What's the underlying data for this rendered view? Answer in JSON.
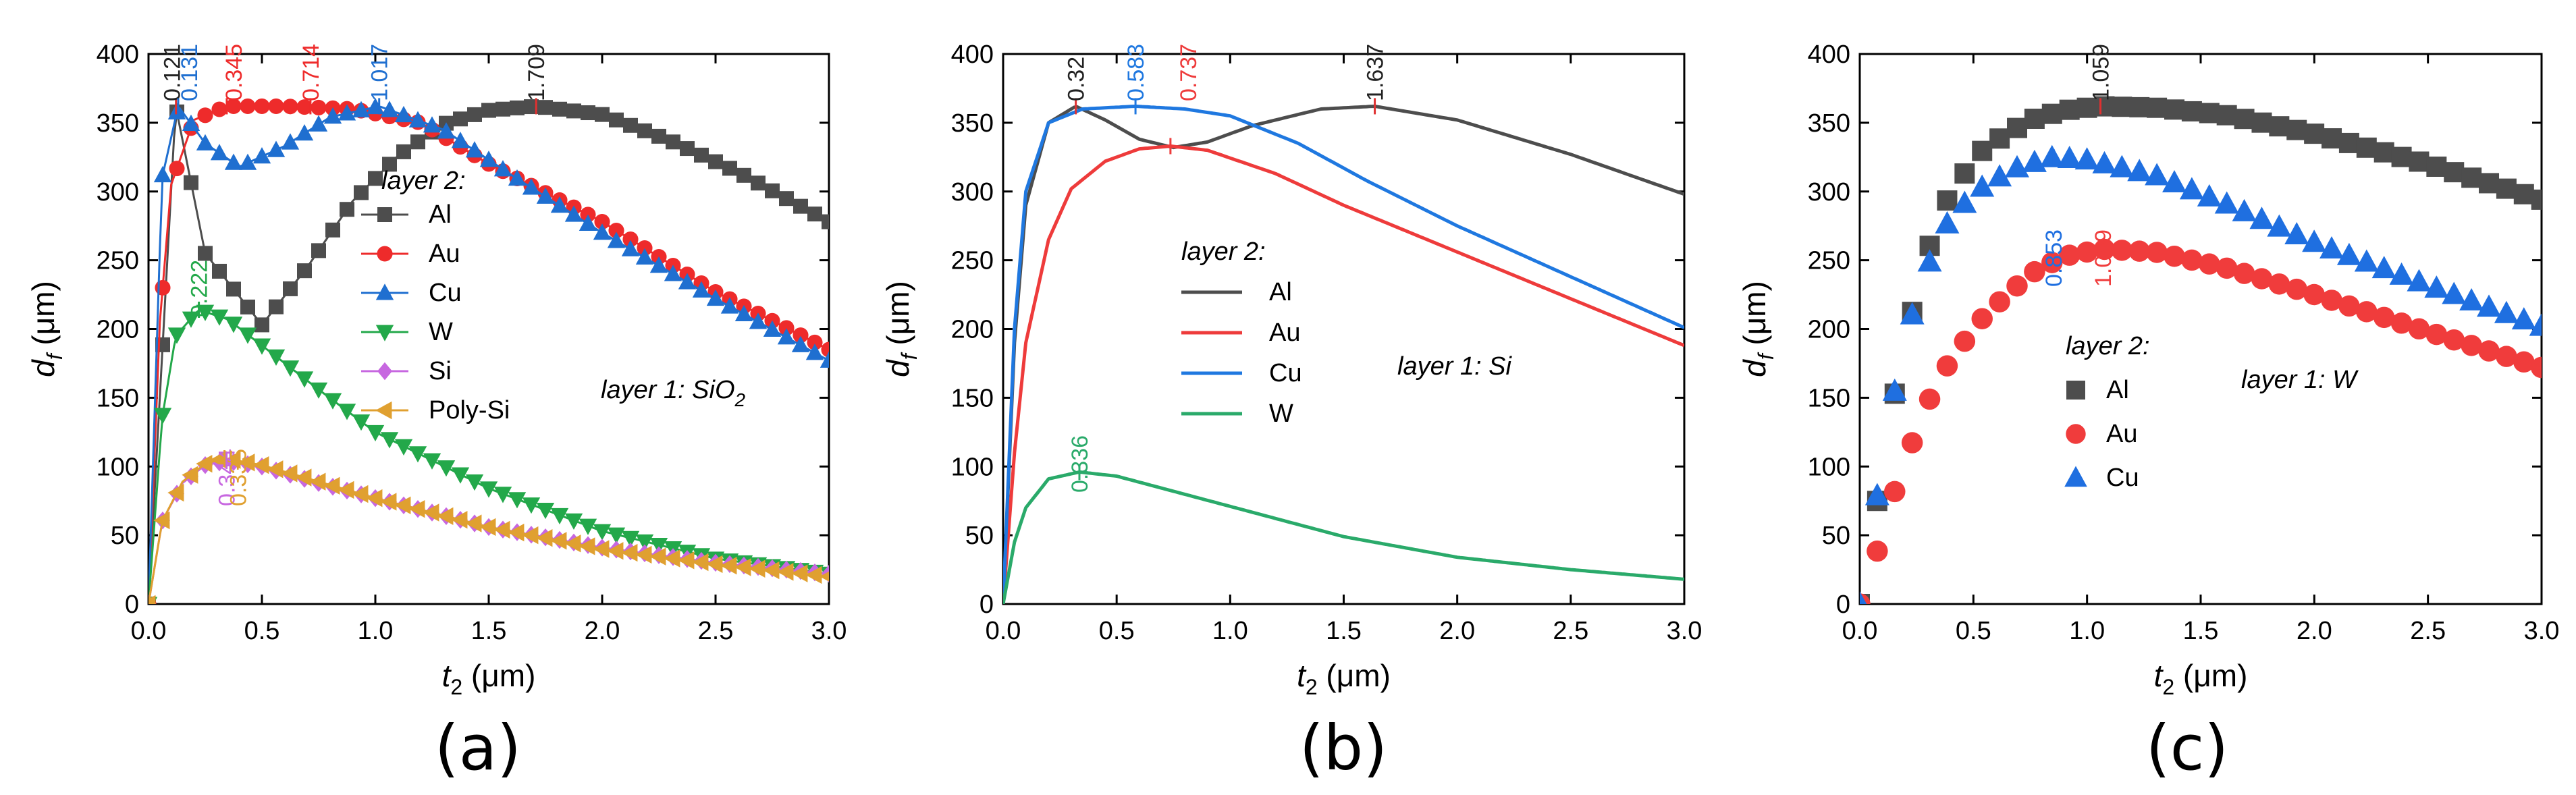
{
  "chart_data": [
    {
      "type": "line",
      "panel_label": "(a)",
      "xlabel": "t2 (μm)",
      "ylabel": "df (μm)",
      "xlim": [
        0,
        3.0
      ],
      "ylim": [
        0,
        400
      ],
      "xticks": [
        0,
        0.5,
        1.0,
        1.5,
        2.0,
        2.5,
        3.0
      ],
      "xtick_labels": [
        "0.0",
        "0.5",
        "1.0",
        "1.5",
        "2.0",
        "2.5",
        "3.0"
      ],
      "yticks": [
        0,
        50,
        100,
        150,
        200,
        250,
        300,
        350,
        400
      ],
      "ytick_labels": [
        "0",
        "50",
        "100",
        "150",
        "200",
        "250",
        "300",
        "350",
        "400"
      ],
      "legend_title": "layer 2:",
      "annotation": "layer 1: SiO2",
      "x_step": 0.0625,
      "series": [
        {
          "name": "Al",
          "color": "#4d4d4d",
          "marker": "square",
          "points": [
            [
              0,
              0
            ],
            [
              0.12,
              362
            ],
            [
              0.25,
              255
            ],
            [
              0.5,
              203
            ],
            [
              0.7,
              245
            ],
            [
              0.9,
              293
            ],
            [
              1.1,
              326
            ],
            [
              1.3,
              349
            ],
            [
              1.5,
              359
            ],
            [
              1.709,
              362
            ],
            [
              2.0,
              356
            ],
            [
              2.3,
              337
            ],
            [
              2.6,
              314
            ],
            [
              3.0,
              278
            ]
          ],
          "peaks": [
            {
              "x": 0.121,
              "y": 362,
              "label": "0.121"
            },
            {
              "x": 1.709,
              "y": 362,
              "label": "1.709"
            }
          ]
        },
        {
          "name": "Au",
          "color": "#ee2b2b",
          "marker": "circle",
          "points": [
            [
              0,
              0
            ],
            [
              0.05,
              205
            ],
            [
              0.1,
              305
            ],
            [
              0.2,
              352
            ],
            [
              0.345,
              362
            ],
            [
              0.6,
              362
            ],
            [
              0.9,
              360
            ],
            [
              1.2,
              350
            ],
            [
              1.5,
              320
            ],
            [
              2.0,
              278
            ],
            [
              2.5,
              227
            ],
            [
              3.0,
              185
            ]
          ],
          "peaks": [
            {
              "x": 0.345,
              "y": 362,
              "label": "0.345"
            },
            {
              "x": 0.714,
              "y": 362,
              "label": "0.714"
            }
          ]
        },
        {
          "name": "Cu",
          "color": "#1f6fd0",
          "marker": "triangle",
          "points": [
            [
              0,
              0
            ],
            [
              0.06,
              310
            ],
            [
              0.131,
              362
            ],
            [
              0.25,
              335
            ],
            [
              0.4,
              318
            ],
            [
              0.6,
              333
            ],
            [
              0.8,
              354
            ],
            [
              1.017,
              362
            ],
            [
              1.3,
              345
            ],
            [
              1.6,
              312
            ],
            [
              2.0,
              270
            ],
            [
              2.5,
              222
            ],
            [
              3.0,
              177
            ]
          ],
          "peaks": [
            {
              "x": 0.131,
              "y": 362,
              "label": "0.131"
            },
            {
              "x": 1.017,
              "y": 362,
              "label": "1.017"
            }
          ]
        },
        {
          "name": "W",
          "color": "#23a84a",
          "marker": "triangle-down",
          "points": [
            [
              0,
              0
            ],
            [
              0.06,
              135
            ],
            [
              0.12,
              195
            ],
            [
              0.222,
              214
            ],
            [
              0.35,
              207
            ],
            [
              0.5,
              188
            ],
            [
              0.75,
              156
            ],
            [
              1.0,
              125
            ],
            [
              1.5,
              84
            ],
            [
              2.0,
              53
            ],
            [
              2.5,
              33
            ],
            [
              3.0,
              22
            ]
          ],
          "peaks": [
            {
              "x": 0.222,
              "y": 214,
              "label": "0.222"
            }
          ]
        },
        {
          "name": "Si",
          "color": "#c767e0",
          "marker": "diamond",
          "points": [
            [
              0,
              0
            ],
            [
              0.06,
              60
            ],
            [
              0.15,
              88
            ],
            [
              0.25,
              101
            ],
            [
              0.344,
              104
            ],
            [
              0.5,
              100
            ],
            [
              0.75,
              88
            ],
            [
              1.0,
              77
            ],
            [
              1.5,
              56
            ],
            [
              2.0,
              41
            ],
            [
              2.5,
              30
            ],
            [
              3.0,
              22
            ]
          ],
          "peaks": [
            {
              "x": 0.344,
              "y": 104,
              "label": "0.344"
            }
          ]
        },
        {
          "name": "Poly-Si",
          "color": "#e0a030",
          "marker": "triangle-left",
          "points": [
            [
              0,
              0
            ],
            [
              0.06,
              60
            ],
            [
              0.15,
              89
            ],
            [
              0.25,
              102
            ],
            [
              0.335,
              106
            ],
            [
              0.5,
              101
            ],
            [
              0.75,
              89
            ],
            [
              1.0,
              77
            ],
            [
              1.5,
              56
            ],
            [
              2.0,
              40
            ],
            [
              2.5,
              29
            ],
            [
              3.0,
              20
            ]
          ],
          "peaks": [
            {
              "x": 0.335,
              "y": 106,
              "label": "0.335"
            }
          ]
        }
      ]
    },
    {
      "type": "line",
      "panel_label": "(b)",
      "xlabel": "t2 (μm)",
      "ylabel": "df (μm)",
      "xlim": [
        0,
        3.0
      ],
      "ylim": [
        0,
        400
      ],
      "xticks": [
        0,
        0.5,
        1.0,
        1.5,
        2.0,
        2.5,
        3.0
      ],
      "xtick_labels": [
        "0.0",
        "0.5",
        "1.0",
        "1.5",
        "2.0",
        "2.5",
        "3.0"
      ],
      "yticks": [
        0,
        50,
        100,
        150,
        200,
        250,
        300,
        350,
        400
      ],
      "ytick_labels": [
        "0",
        "50",
        "100",
        "150",
        "200",
        "250",
        "300",
        "350",
        "400"
      ],
      "legend_title": "layer 2:",
      "annotation": "layer 1: Si",
      "series": [
        {
          "name": "Al",
          "color": "#4d4d4d",
          "points": [
            [
              0,
              0
            ],
            [
              0.05,
              190
            ],
            [
              0.1,
              290
            ],
            [
              0.2,
              350
            ],
            [
              0.32,
              362
            ],
            [
              0.45,
              352
            ],
            [
              0.6,
              338
            ],
            [
              0.75,
              332
            ],
            [
              0.9,
              336
            ],
            [
              1.1,
              348
            ],
            [
              1.4,
              360
            ],
            [
              1.637,
              362
            ],
            [
              2.0,
              352
            ],
            [
              2.5,
              327
            ],
            [
              3.0,
              298
            ]
          ],
          "peaks": [
            {
              "x": 0.32,
              "y": 362,
              "label": "0.32"
            },
            {
              "x": 1.637,
              "y": 362,
              "label": "1.637"
            }
          ]
        },
        {
          "name": "Au",
          "color": "#ee3b3b",
          "points": [
            [
              0,
              0
            ],
            [
              0.05,
              110
            ],
            [
              0.1,
              190
            ],
            [
              0.2,
              265
            ],
            [
              0.3,
              302
            ],
            [
              0.45,
              322
            ],
            [
              0.6,
              331
            ],
            [
              0.737,
              333
            ],
            [
              0.9,
              330
            ],
            [
              1.2,
              313
            ],
            [
              1.5,
              290
            ],
            [
              2.0,
              256
            ],
            [
              2.5,
              222
            ],
            [
              3.0,
              188
            ]
          ],
          "peaks": [
            {
              "x": 0.737,
              "y": 333,
              "label": "0.737"
            }
          ]
        },
        {
          "name": "Cu",
          "color": "#1f78e0",
          "points": [
            [
              0,
              0
            ],
            [
              0.05,
              200
            ],
            [
              0.1,
              300
            ],
            [
              0.2,
              350
            ],
            [
              0.35,
              360
            ],
            [
              0.583,
              362
            ],
            [
              0.8,
              360
            ],
            [
              1.0,
              355
            ],
            [
              1.3,
              335
            ],
            [
              1.6,
              308
            ],
            [
              2.0,
              275
            ],
            [
              2.5,
              238
            ],
            [
              3.0,
              201
            ]
          ],
          "peaks": [
            {
              "x": 0.583,
              "y": 362,
              "label": "0.583"
            }
          ]
        },
        {
          "name": "W",
          "color": "#2aaa6a",
          "points": [
            [
              0,
              0
            ],
            [
              0.05,
              45
            ],
            [
              0.1,
              70
            ],
            [
              0.2,
              91
            ],
            [
              0.336,
              96
            ],
            [
              0.5,
              93
            ],
            [
              0.75,
              82
            ],
            [
              1.0,
              71
            ],
            [
              1.5,
              49
            ],
            [
              2.0,
              34
            ],
            [
              2.5,
              25
            ],
            [
              3.0,
              18
            ]
          ],
          "peaks": [
            {
              "x": 0.336,
              "y": 96,
              "label": "0.336"
            }
          ]
        }
      ]
    },
    {
      "type": "scatter",
      "panel_label": "(c)",
      "xlabel": "t2 (μm)",
      "ylabel": "df (μm)",
      "xlim": [
        0,
        3.0
      ],
      "ylim": [
        0,
        400
      ],
      "xticks": [
        0,
        0.5,
        1.0,
        1.5,
        2.0,
        2.5,
        3.0
      ],
      "xtick_labels": [
        "0.0",
        "0.5",
        "1.0",
        "1.5",
        "2.0",
        "2.5",
        "3.0"
      ],
      "yticks": [
        0,
        50,
        100,
        150,
        200,
        250,
        300,
        350,
        400
      ],
      "ytick_labels": [
        "0",
        "50",
        "100",
        "150",
        "200",
        "250",
        "300",
        "350",
        "400"
      ],
      "legend_title": "layer 2:",
      "annotation": "layer 1: W",
      "x_step": 0.0769,
      "series": [
        {
          "name": "Al",
          "color": "#4d4d4d",
          "marker": "square",
          "points": [
            [
              0,
              0
            ],
            [
              0.08,
              78
            ],
            [
              0.15,
              150
            ],
            [
              0.23,
              212
            ],
            [
              0.31,
              262
            ],
            [
              0.4,
              300
            ],
            [
              0.55,
              332
            ],
            [
              0.75,
              352
            ],
            [
              0.9,
              359
            ],
            [
              1.059,
              362
            ],
            [
              1.3,
              361
            ],
            [
              1.6,
              356
            ],
            [
              2.0,
              342
            ],
            [
              2.5,
              320
            ],
            [
              3.0,
              294
            ]
          ],
          "peaks": [
            {
              "x": 1.059,
              "y": 362,
              "label": "1.059"
            }
          ]
        },
        {
          "name": "Au",
          "color": "#f03c3c",
          "marker": "circle",
          "points": [
            [
              0,
              0
            ],
            [
              0.08,
              40
            ],
            [
              0.15,
              80
            ],
            [
              0.23,
              117
            ],
            [
              0.31,
              150
            ],
            [
              0.4,
              178
            ],
            [
              0.55,
              210
            ],
            [
              0.75,
              240
            ],
            [
              0.9,
              253
            ],
            [
              1.069,
              258
            ],
            [
              1.3,
              256
            ],
            [
              1.6,
              245
            ],
            [
              2.0,
              225
            ],
            [
              2.5,
              198
            ],
            [
              3.0,
              172
            ]
          ],
          "peaks": [
            {
              "x": 1.069,
              "y": 258,
              "label": "1.069"
            }
          ]
        },
        {
          "name": "Cu",
          "color": "#1f6fe0",
          "marker": "triangle",
          "points": [
            [
              0,
              0
            ],
            [
              0.08,
              82
            ],
            [
              0.15,
              152
            ],
            [
              0.23,
              210
            ],
            [
              0.31,
              250
            ],
            [
              0.4,
              282
            ],
            [
              0.55,
              305
            ],
            [
              0.7,
              318
            ],
            [
              0.853,
              325
            ],
            [
              1.0,
              323
            ],
            [
              1.3,
              312
            ],
            [
              1.6,
              292
            ],
            [
              2.0,
              263
            ],
            [
              2.5,
              232
            ],
            [
              3.0,
              202
            ]
          ],
          "peaks": [
            {
              "x": 0.853,
              "y": 325,
              "label": "0.853"
            }
          ]
        }
      ]
    }
  ]
}
